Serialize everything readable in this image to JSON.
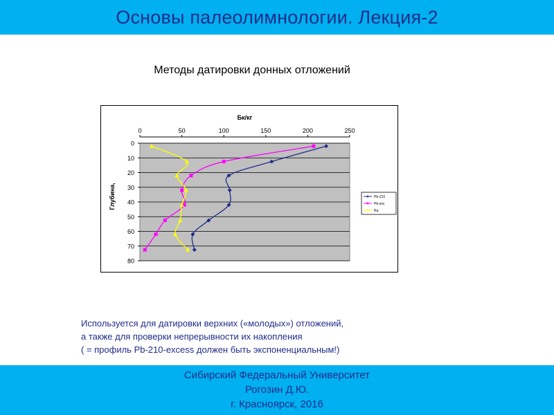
{
  "header": {
    "title": "Основы палеолимнологии. Лекция-2"
  },
  "slide": {
    "subtitle": "Методы датировки донных отложений"
  },
  "notes": [
    "Используется для датировки верхних («молодых») отложений,",
    "а также для проверки непрерывности их накопления",
    "( = профиль Pb-210-excess должен быть экспоненциальным!)"
  ],
  "footer": {
    "lines": [
      "Сибирский Федеральный Университет",
      "Рогозин Д.Ю.",
      "г. Красноярск, 2016"
    ]
  },
  "chart_data": {
    "type": "scatter",
    "title": "Бк/кг",
    "xlabel": "Бк/кг",
    "ylabel": "Глубина,",
    "xlim": [
      0,
      250
    ],
    "ylim": [
      0,
      80
    ],
    "y_inverted": true,
    "x_axis_position": "top",
    "xticks": [
      0,
      50,
      100,
      150,
      200,
      250
    ],
    "yticks": [
      0,
      10,
      20,
      30,
      40,
      50,
      60,
      70,
      80
    ],
    "grid": true,
    "legend_position": "right",
    "colors": {
      "plot_bg": "#c0c0c0",
      "grid": "#000000"
    },
    "series": [
      {
        "name": "Pb-210",
        "color": "#1f2d8a",
        "marker": "diamond",
        "x": [
          222,
          157,
          106,
          107,
          106,
          82,
          63,
          65
        ],
        "y": [
          2,
          12.5,
          22,
          32,
          42,
          52.5,
          62,
          72.5
        ]
      },
      {
        "name": "Pb-exc",
        "color": "#ff00ff",
        "marker": "square",
        "x": [
          207,
          100,
          61,
          50,
          53,
          30,
          19,
          6
        ],
        "y": [
          2,
          12.5,
          22,
          32,
          42,
          52.5,
          62,
          72.5
        ]
      },
      {
        "name": "Ra",
        "color": "#ffff00",
        "marker": "triangle",
        "x": [
          14,
          56,
          44,
          55,
          50,
          48,
          42,
          57
        ],
        "y": [
          2,
          12.5,
          22,
          32,
          42,
          52.5,
          62,
          72.5
        ]
      }
    ]
  }
}
